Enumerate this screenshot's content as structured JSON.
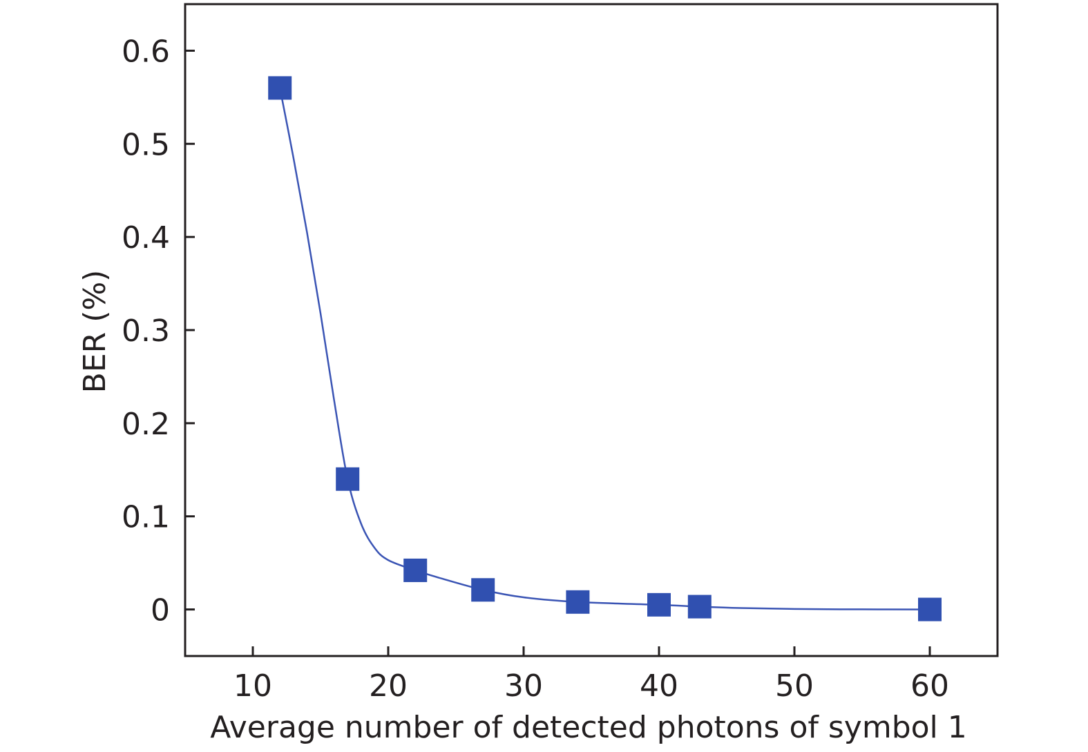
{
  "chart_data": {
    "type": "scatter",
    "xlabel": "Average number of detected photons of symbol 1",
    "ylabel": "BER (%)",
    "xlim": [
      5,
      65
    ],
    "ylim": [
      -0.05,
      0.65
    ],
    "x_ticks": [
      10,
      20,
      30,
      40,
      50,
      60
    ],
    "y_ticks": [
      0,
      0.1,
      0.2,
      0.3,
      0.4,
      0.5,
      0.6
    ],
    "x_tick_labels": [
      "10",
      "20",
      "30",
      "40",
      "50",
      "60"
    ],
    "y_tick_labels": [
      "0",
      "0.1",
      "0.2",
      "0.3",
      "0.4",
      "0.5",
      "0.6"
    ],
    "grid": false,
    "marker_color": "#3050b0",
    "line_color": "#3a54b4",
    "series": [
      {
        "marker": "square",
        "points": [
          {
            "x": 12,
            "y": 0.56
          },
          {
            "x": 17,
            "y": 0.14
          },
          {
            "x": 22,
            "y": 0.042
          },
          {
            "x": 27,
            "y": 0.021
          },
          {
            "x": 34,
            "y": 0.008
          },
          {
            "x": 40,
            "y": 0.005
          },
          {
            "x": 43,
            "y": 0.003
          },
          {
            "x": 60,
            "y": 0.0
          }
        ],
        "fit_curve": [
          {
            "x": 12,
            "y": 0.56
          },
          {
            "x": 13,
            "y": 0.485
          },
          {
            "x": 14,
            "y": 0.405
          },
          {
            "x": 15,
            "y": 0.318
          },
          {
            "x": 16,
            "y": 0.225
          },
          {
            "x": 17,
            "y": 0.14
          },
          {
            "x": 18,
            "y": 0.092
          },
          {
            "x": 19,
            "y": 0.066
          },
          {
            "x": 20,
            "y": 0.053
          },
          {
            "x": 22,
            "y": 0.042
          },
          {
            "x": 24,
            "y": 0.033
          },
          {
            "x": 27,
            "y": 0.021
          },
          {
            "x": 30,
            "y": 0.013
          },
          {
            "x": 34,
            "y": 0.008
          },
          {
            "x": 40,
            "y": 0.005
          },
          {
            "x": 43,
            "y": 0.003
          },
          {
            "x": 46,
            "y": 0.0015
          },
          {
            "x": 50,
            "y": 0.0005
          },
          {
            "x": 55,
            "y": 0.0001
          },
          {
            "x": 60,
            "y": 0.0
          }
        ]
      }
    ]
  }
}
